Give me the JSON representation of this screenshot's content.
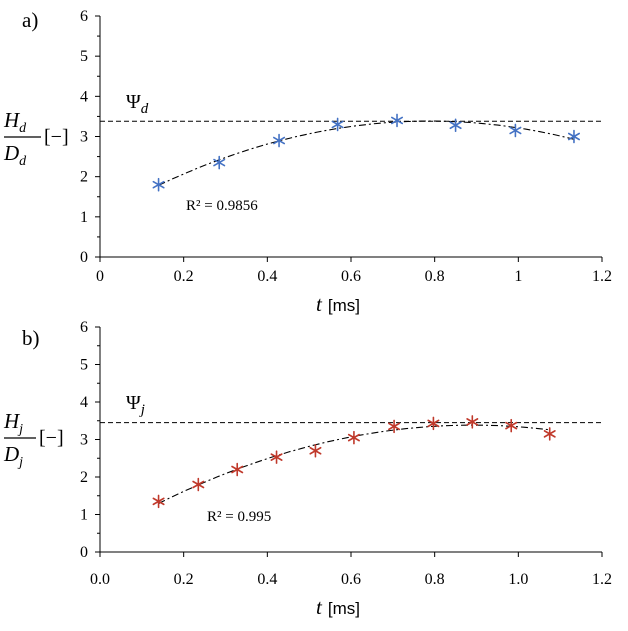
{
  "chart_data": [
    {
      "type": "scatter",
      "panel_label": "a)",
      "x": [
        0.14,
        0.285,
        0.428,
        0.568,
        0.71,
        0.85,
        0.993,
        1.133
      ],
      "y": [
        1.8,
        2.35,
        2.9,
        3.3,
        3.4,
        3.28,
        3.15,
        3.0
      ],
      "marker_color": "#4472C4",
      "marker": "asterisk",
      "trend": "dash-dot fitted curve",
      "xlabel_var": "t",
      "xlabel_unit": "[ms]",
      "ylabel_num": "H",
      "ylabel_den": "D",
      "ylabel_sub": "d",
      "ylabel_unit": "[−]",
      "xlim": [
        0,
        1.2
      ],
      "ylim": [
        0,
        6
      ],
      "xticks": [
        "0",
        "0.2",
        "0.4",
        "0.6",
        "0.8",
        "1",
        "1.2"
      ],
      "yticks": [
        "0",
        "1",
        "2",
        "3",
        "4",
        "5",
        "6"
      ],
      "reference_line": {
        "label": "Ψ",
        "sub": "d",
        "y": 3.38
      },
      "annotation": "R² = 0.9856"
    },
    {
      "type": "scatter",
      "panel_label": "b)",
      "x": [
        0.14,
        0.235,
        0.328,
        0.422,
        0.515,
        0.607,
        0.703,
        0.797,
        0.89,
        0.983,
        1.075
      ],
      "y": [
        1.35,
        1.8,
        2.2,
        2.53,
        2.7,
        3.05,
        3.35,
        3.43,
        3.47,
        3.37,
        3.15
      ],
      "marker_color": "#C0392B",
      "marker": "asterisk",
      "trend": "dash-dot fitted curve",
      "xlabel_var": "t",
      "xlabel_unit": "[ms]",
      "ylabel_num": "H",
      "ylabel_den": "D",
      "ylabel_sub": "j",
      "ylabel_unit": "[−]",
      "xlim": [
        0,
        1.2
      ],
      "ylim": [
        0,
        6
      ],
      "xticks": [
        "0.0",
        "0.2",
        "0.4",
        "0.6",
        "0.8",
        "1.0",
        "1.2"
      ],
      "yticks": [
        "0",
        "1",
        "2",
        "3",
        "4",
        "5",
        "6"
      ],
      "reference_line": {
        "label": "Ψ",
        "sub": "j",
        "y": 3.45
      },
      "annotation": "R² = 0.995"
    }
  ]
}
